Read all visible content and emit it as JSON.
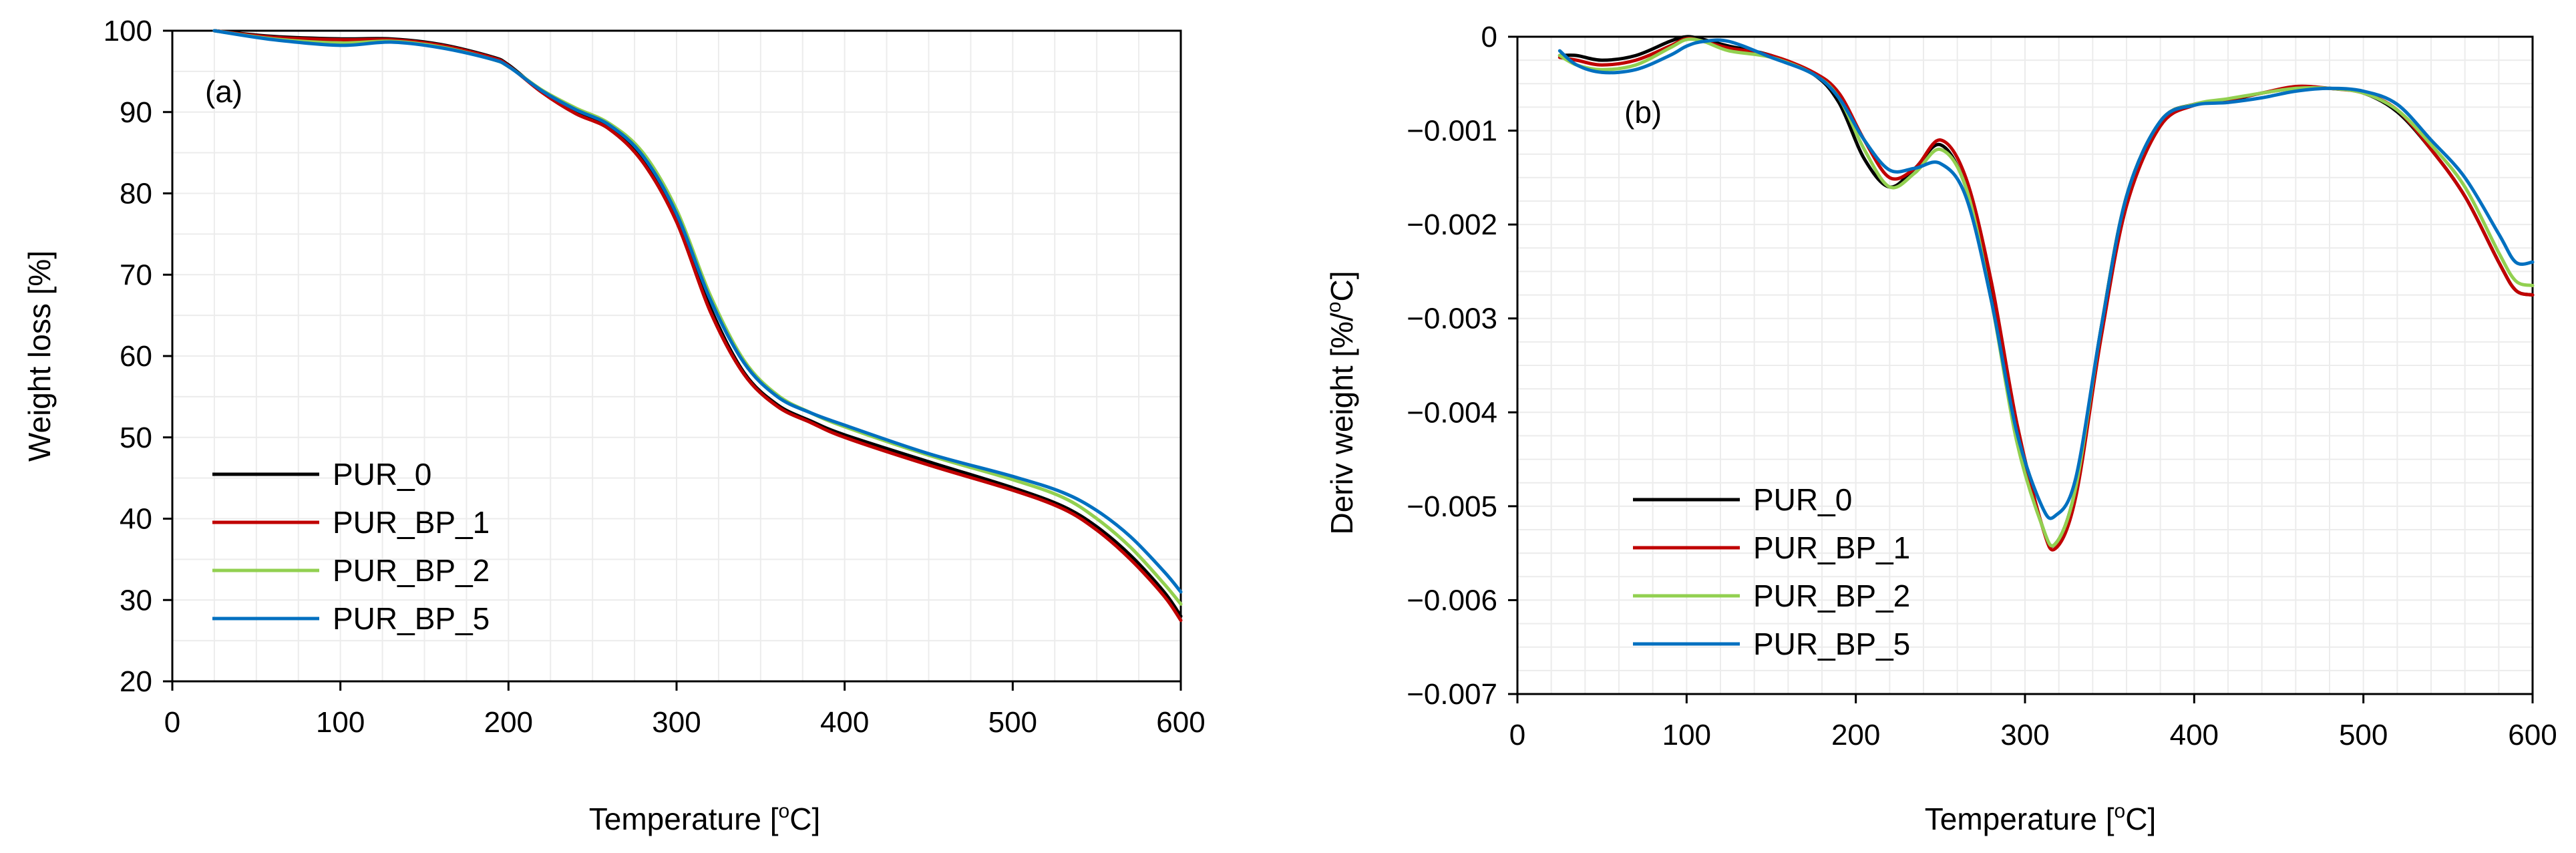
{
  "chart_data": [
    {
      "type": "line",
      "panel_label": "(a)",
      "xlabel": "Temperature [",
      "xlabel_sup": "o",
      "xlabel_end": "C]",
      "ylabel": "Weight loss [%]",
      "xlim": [
        0,
        600
      ],
      "ylim": [
        20,
        100
      ],
      "x_ticks": [
        0,
        100,
        200,
        300,
        400,
        500,
        600
      ],
      "y_ticks": [
        20,
        30,
        40,
        50,
        60,
        70,
        80,
        90,
        100
      ],
      "x_tick_labels": [
        "0",
        "100",
        "200",
        "300",
        "400",
        "500",
        "600"
      ],
      "y_tick_labels": [
        "20",
        "30",
        "40",
        "50",
        "60",
        "70",
        "80",
        "90",
        "100"
      ],
      "legend_position": "bottom-left",
      "series": [
        {
          "name": "PUR_0",
          "color": "#000000",
          "x": [
            25,
            60,
            100,
            130,
            160,
            190,
            200,
            220,
            240,
            260,
            280,
            300,
            320,
            340,
            360,
            380,
            400,
            450,
            500,
            530,
            550,
            570,
            590,
            600
          ],
          "y": [
            100,
            99.3,
            99.0,
            99.0,
            98.3,
            96.8,
            95.8,
            92.5,
            90.0,
            88.0,
            84.0,
            77.0,
            66.0,
            58.0,
            54.0,
            52.0,
            50.3,
            47.0,
            43.8,
            41.5,
            39.0,
            35.5,
            31.0,
            28.0
          ]
        },
        {
          "name": "PUR_BP_1",
          "color": "#c00000",
          "x": [
            25,
            60,
            100,
            130,
            160,
            190,
            200,
            220,
            240,
            260,
            280,
            300,
            320,
            340,
            360,
            380,
            400,
            450,
            500,
            530,
            550,
            570,
            590,
            600
          ],
          "y": [
            100,
            99.2,
            98.9,
            98.9,
            98.2,
            96.7,
            95.7,
            92.4,
            89.8,
            87.9,
            83.8,
            76.5,
            65.5,
            57.8,
            53.8,
            51.8,
            50.0,
            46.6,
            43.5,
            41.2,
            38.6,
            35.0,
            30.5,
            27.5
          ]
        },
        {
          "name": "PUR_BP_2",
          "color": "#92d050",
          "x": [
            25,
            60,
            100,
            130,
            160,
            190,
            200,
            220,
            240,
            260,
            280,
            300,
            320,
            340,
            360,
            380,
            400,
            450,
            500,
            530,
            550,
            570,
            590,
            600
          ],
          "y": [
            100,
            99.0,
            98.5,
            98.7,
            98.0,
            96.5,
            95.6,
            92.7,
            90.5,
            88.6,
            85.0,
            78.0,
            67.5,
            59.5,
            55.2,
            53.0,
            51.3,
            47.8,
            44.8,
            42.6,
            40.0,
            36.5,
            32.0,
            29.5
          ]
        },
        {
          "name": "PUR_BP_5",
          "color": "#0070c0",
          "x": [
            25,
            60,
            100,
            130,
            160,
            190,
            200,
            220,
            240,
            260,
            280,
            300,
            320,
            340,
            360,
            380,
            400,
            450,
            500,
            530,
            550,
            570,
            590,
            600
          ],
          "y": [
            100,
            98.9,
            98.2,
            98.6,
            97.9,
            96.5,
            95.6,
            92.6,
            90.3,
            88.4,
            84.6,
            77.5,
            67.0,
            59.2,
            55.0,
            53.0,
            51.5,
            48.0,
            45.2,
            43.2,
            41.0,
            37.8,
            33.5,
            31.0
          ]
        }
      ]
    },
    {
      "type": "line",
      "panel_label": "(b)",
      "xlabel": "Temperature [",
      "xlabel_sup": "o",
      "xlabel_end": "C]",
      "ylabel": "Deriv weight [%/",
      "ylabel_sup": "o",
      "ylabel_end": "C]",
      "xlim": [
        0,
        600
      ],
      "ylim": [
        -0.007,
        0
      ],
      "x_ticks": [
        0,
        100,
        200,
        300,
        400,
        500,
        600
      ],
      "y_ticks": [
        -0.007,
        -0.006,
        -0.005,
        -0.004,
        -0.003,
        -0.002,
        -0.001,
        0
      ],
      "x_tick_labels": [
        "0",
        "100",
        "200",
        "300",
        "400",
        "500",
        "600"
      ],
      "y_tick_labels": [
        "−0.007",
        "−0.006",
        "−0.005",
        "−0.004",
        "−0.003",
        "−0.002",
        "−0.001",
        "0"
      ],
      "legend_position": "bottom-left",
      "series": [
        {
          "name": "PUR_0",
          "color": "#000000",
          "x": [
            25,
            35,
            50,
            70,
            90,
            100,
            110,
            125,
            150,
            175,
            190,
            205,
            220,
            235,
            250,
            265,
            280,
            295,
            310,
            318,
            330,
            345,
            360,
            380,
            400,
            420,
            440,
            460,
            480,
            500,
            520,
            540,
            560,
            580,
            590,
            600
          ],
          "y": [
            -0.0002,
            -0.0002,
            -0.00025,
            -0.0002,
            -5e-05,
            0,
            -3e-05,
            -0.0001,
            -0.0002,
            -0.0004,
            -0.0007,
            -0.0013,
            -0.0016,
            -0.0014,
            -0.00115,
            -0.0016,
            -0.0027,
            -0.0042,
            -0.0052,
            -0.0054,
            -0.0048,
            -0.0031,
            -0.0017,
            -0.0009,
            -0.00072,
            -0.00068,
            -0.0006,
            -0.00055,
            -0.00055,
            -0.0006,
            -0.0008,
            -0.0012,
            -0.0017,
            -0.0024,
            -0.0027,
            -0.00275
          ]
        },
        {
          "name": "PUR_BP_1",
          "color": "#c00000",
          "x": [
            25,
            35,
            50,
            70,
            90,
            100,
            110,
            125,
            150,
            175,
            190,
            205,
            220,
            235,
            250,
            265,
            280,
            295,
            310,
            318,
            330,
            345,
            360,
            380,
            400,
            420,
            440,
            460,
            480,
            500,
            520,
            540,
            560,
            580,
            590,
            600
          ],
          "y": [
            -0.00022,
            -0.00025,
            -0.0003,
            -0.00025,
            -0.0001,
            -2e-05,
            -5e-05,
            -0.00012,
            -0.0002,
            -0.00038,
            -0.0006,
            -0.0011,
            -0.0015,
            -0.0014,
            -0.0011,
            -0.0015,
            -0.0026,
            -0.0041,
            -0.0052,
            -0.00545,
            -0.0049,
            -0.0032,
            -0.0018,
            -0.00095,
            -0.00073,
            -0.00067,
            -0.0006,
            -0.00053,
            -0.00055,
            -0.0006,
            -0.00078,
            -0.0012,
            -0.0017,
            -0.0024,
            -0.0027,
            -0.00275
          ]
        },
        {
          "name": "PUR_BP_2",
          "color": "#92d050",
          "x": [
            25,
            35,
            50,
            70,
            90,
            100,
            110,
            125,
            150,
            175,
            190,
            205,
            220,
            235,
            250,
            265,
            280,
            295,
            310,
            318,
            330,
            345,
            360,
            380,
            400,
            420,
            440,
            460,
            480,
            500,
            520,
            540,
            560,
            580,
            590,
            600
          ],
          "y": [
            -0.0002,
            -0.0003,
            -0.00035,
            -0.0003,
            -0.00012,
            -3e-05,
            -5e-05,
            -0.00015,
            -0.00022,
            -0.0004,
            -0.00065,
            -0.0012,
            -0.0016,
            -0.00145,
            -0.0012,
            -0.0016,
            -0.0028,
            -0.0043,
            -0.0052,
            -0.0054,
            -0.0048,
            -0.0031,
            -0.0017,
            -0.0009,
            -0.00072,
            -0.00066,
            -0.0006,
            -0.00055,
            -0.00055,
            -0.0006,
            -0.00078,
            -0.00115,
            -0.0016,
            -0.0023,
            -0.0026,
            -0.00265
          ]
        },
        {
          "name": "PUR_BP_5",
          "color": "#0070c0",
          "x": [
            25,
            35,
            50,
            70,
            90,
            100,
            110,
            125,
            150,
            175,
            190,
            205,
            220,
            235,
            250,
            265,
            280,
            295,
            310,
            318,
            330,
            345,
            360,
            380,
            400,
            420,
            440,
            460,
            480,
            500,
            520,
            540,
            560,
            580,
            590,
            600
          ],
          "y": [
            -0.00015,
            -0.0003,
            -0.00038,
            -0.00035,
            -0.0002,
            -0.0001,
            -5e-05,
            -5e-05,
            -0.00022,
            -0.0004,
            -0.00065,
            -0.0011,
            -0.00142,
            -0.0014,
            -0.00135,
            -0.0017,
            -0.0028,
            -0.0042,
            -0.005,
            -0.0051,
            -0.0047,
            -0.0031,
            -0.0017,
            -0.0009,
            -0.00073,
            -0.0007,
            -0.00065,
            -0.00058,
            -0.00055,
            -0.00058,
            -0.00072,
            -0.0011,
            -0.0015,
            -0.0021,
            -0.0024,
            -0.0024
          ]
        }
      ]
    }
  ]
}
